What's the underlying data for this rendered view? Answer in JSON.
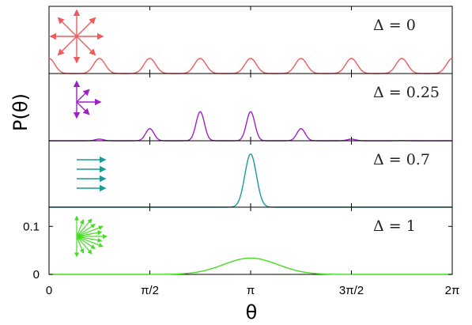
{
  "chart_data": {
    "type": "line",
    "xlabel": "θ",
    "ylabel": "P(θ)",
    "xlim": [
      0,
      6.2832
    ],
    "x_ticks": [
      {
        "value": 0,
        "label": "0"
      },
      {
        "value": 1.5708,
        "label": "π/2"
      },
      {
        "value": 3.1416,
        "label": "π"
      },
      {
        "value": 4.7124,
        "label": "3π/2"
      },
      {
        "value": 6.2832,
        "label": "2π"
      }
    ],
    "y_ticks_bottom_panel": [
      {
        "value": 0,
        "label": "0"
      },
      {
        "value": 0.1,
        "label": "0.1"
      }
    ],
    "panels": [
      {
        "label": "Δ = 0",
        "color": "#f05a5a",
        "icon": "eight-direction-arrows-icon",
        "ylim": [
          0,
          0.2
        ],
        "shape": {
          "kind": "peaks",
          "peak_height": 0.045,
          "peak_width": 0.09,
          "peaks": [
            0,
            0.7854,
            1.5708,
            2.3562,
            3.1416,
            3.927,
            4.7124,
            5.4978,
            6.2832
          ],
          "weights": [
            1,
            1,
            1,
            1,
            1,
            1,
            1,
            1,
            1
          ]
        }
      },
      {
        "label": "Δ = 0.25",
        "color": "#a020c8",
        "icon": "four-arrows-fan-icon",
        "ylim": [
          0,
          0.2
        ],
        "shape": {
          "kind": "peaks",
          "peak_height": 0.12,
          "peak_width": 0.065,
          "peaks": [
            0.7854,
            1.5708,
            2.3562,
            3.1416,
            3.927,
            4.7124,
            5.4978
          ],
          "weights": [
            0.04,
            0.3,
            0.72,
            0.72,
            0.3,
            0.04,
            0.003
          ]
        }
      },
      {
        "label": "Δ = 0.7",
        "color": "#1a9c94",
        "icon": "parallel-arrows-icon",
        "ylim": [
          0,
          0.2
        ],
        "shape": {
          "kind": "peaks",
          "peak_height": 0.16,
          "peak_width": 0.09,
          "peaks": [
            3.1416
          ],
          "weights": [
            1
          ]
        }
      },
      {
        "label": "Δ = 1",
        "color": "#44dd22",
        "icon": "half-fan-arrows-icon",
        "ylim": [
          0,
          0.14
        ],
        "shape": {
          "kind": "broad",
          "peak_height": 0.034,
          "peak_width": 0.42,
          "peaks": [
            3.1416
          ],
          "weights": [
            1
          ]
        }
      }
    ]
  }
}
